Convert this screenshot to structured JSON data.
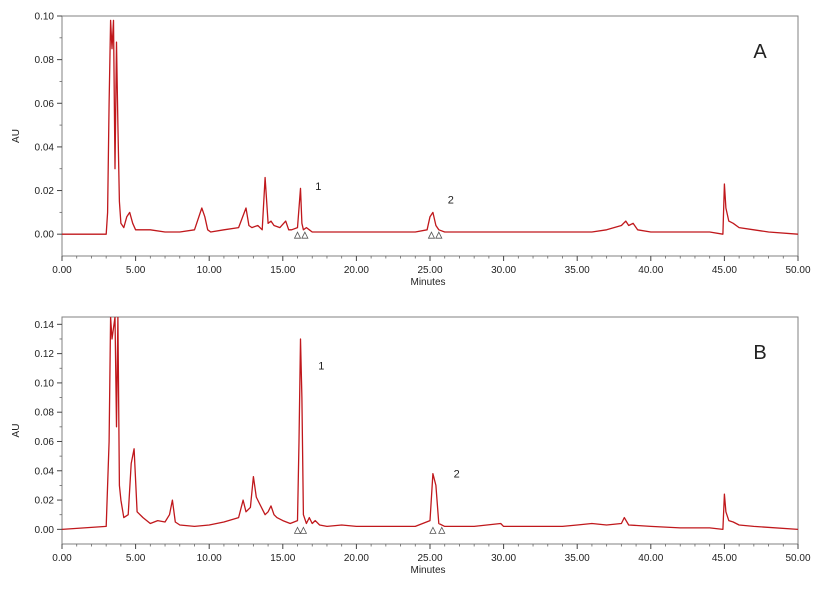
{
  "chart_data": [
    {
      "type": "line",
      "panel_label": "A",
      "xlabel": "Minutes",
      "ylabel": "AU",
      "xlim": [
        0,
        50
      ],
      "ylim": [
        -0.01,
        0.1
      ],
      "x_ticks": [
        "0.00",
        "5.00",
        "10.00",
        "15.00",
        "20.00",
        "25.00",
        "30.00",
        "35.00",
        "40.00",
        "45.00",
        "50.00"
      ],
      "y_ticks": [
        "0.00",
        "0.02",
        "0.04",
        "0.06",
        "0.08",
        "0.10"
      ],
      "peak_labels": [
        {
          "text": "1",
          "x": 16.8,
          "y": 0.022
        },
        {
          "text": "2",
          "x": 25.8,
          "y": 0.016
        }
      ],
      "markers": [
        16.0,
        16.5,
        25.1,
        25.6
      ],
      "trace_color": "#c0181c",
      "series": [
        {
          "x": [
            0,
            3.0,
            3.1,
            3.2,
            3.3,
            3.4,
            3.5,
            3.6,
            3.7,
            3.8,
            3.9,
            4.0,
            4.2,
            4.4,
            4.6,
            4.8,
            5.0,
            5.5,
            6.0,
            7.0,
            8.0,
            9.0,
            9.5,
            9.7,
            9.9,
            10.1,
            11.0,
            12.0,
            12.5,
            12.7,
            12.9,
            13.3,
            13.6,
            13.8,
            14.0,
            14.2,
            14.4,
            14.8,
            15.2,
            15.4,
            15.6,
            16.0,
            16.2,
            16.3,
            16.4,
            16.6,
            16.8,
            17.0,
            18.0,
            20.0,
            22.0,
            24.0,
            24.8,
            25.0,
            25.2,
            25.4,
            25.6,
            26.0,
            28.0,
            30.0,
            32.0,
            34.0,
            36.0,
            37.0,
            38.0,
            38.3,
            38.5,
            38.8,
            39.1,
            40.0,
            42.0,
            44.0,
            44.9,
            45.0,
            45.1,
            45.3,
            45.6,
            46.0,
            47.0,
            48.0,
            50.0
          ],
          "y": [
            0,
            0.0,
            0.01,
            0.06,
            0.098,
            0.085,
            0.098,
            0.03,
            0.088,
            0.05,
            0.015,
            0.005,
            0.003,
            0.008,
            0.01,
            0.005,
            0.002,
            0.002,
            0.002,
            0.001,
            0.001,
            0.002,
            0.012,
            0.008,
            0.002,
            0.001,
            0.002,
            0.003,
            0.012,
            0.004,
            0.003,
            0.004,
            0.002,
            0.026,
            0.005,
            0.006,
            0.004,
            0.003,
            0.006,
            0.002,
            0.002,
            0.003,
            0.021,
            0.005,
            0.002,
            0.003,
            0.002,
            0.001,
            0.001,
            0.001,
            0.001,
            0.001,
            0.002,
            0.008,
            0.01,
            0.004,
            0.002,
            0.001,
            0.001,
            0.001,
            0.001,
            0.001,
            0.001,
            0.002,
            0.004,
            0.006,
            0.004,
            0.005,
            0.002,
            0.001,
            0.001,
            0.001,
            0.0,
            0.023,
            0.012,
            0.006,
            0.005,
            0.003,
            0.002,
            0.001,
            0.0
          ]
        }
      ]
    },
    {
      "type": "line",
      "panel_label": "B",
      "xlabel": "Minutes",
      "ylabel": "AU",
      "xlim": [
        0,
        50
      ],
      "ylim": [
        -0.01,
        0.145
      ],
      "x_ticks": [
        "0.00",
        "5.00",
        "10.00",
        "15.00",
        "20.00",
        "25.00",
        "30.00",
        "35.00",
        "40.00",
        "45.00",
        "50.00"
      ],
      "y_ticks": [
        "0.00",
        "0.02",
        "0.04",
        "0.06",
        "0.08",
        "0.10",
        "0.12",
        "0.14"
      ],
      "peak_labels": [
        {
          "text": "1",
          "x": 17.0,
          "y": 0.112
        },
        {
          "text": "2",
          "x": 26.2,
          "y": 0.038
        }
      ],
      "markers": [
        16.0,
        16.4,
        25.2,
        25.8
      ],
      "trace_color": "#c0181c",
      "series": [
        {
          "x": [
            0,
            3.0,
            3.2,
            3.3,
            3.4,
            3.6,
            3.7,
            3.8,
            3.9,
            4.0,
            4.2,
            4.5,
            4.7,
            4.9,
            5.1,
            5.5,
            6.0,
            6.5,
            7.0,
            7.3,
            7.5,
            7.7,
            8.0,
            9.0,
            10.0,
            11.0,
            12.0,
            12.3,
            12.5,
            12.8,
            13.0,
            13.2,
            13.4,
            13.6,
            13.8,
            14.0,
            14.2,
            14.4,
            14.6,
            15.0,
            15.5,
            16.0,
            16.1,
            16.2,
            16.3,
            16.4,
            16.6,
            16.8,
            17.0,
            17.2,
            17.5,
            18.0,
            19.0,
            20.0,
            22.0,
            24.0,
            25.0,
            25.2,
            25.4,
            25.6,
            26.0,
            28.0,
            29.8,
            30.0,
            32.0,
            34.0,
            35.0,
            36.0,
            37.0,
            38.0,
            38.2,
            38.5,
            40.0,
            42.0,
            44.0,
            44.9,
            45.0,
            45.1,
            45.3,
            45.6,
            46.0,
            47.0,
            50.0
          ],
          "y": [
            0,
            0.002,
            0.06,
            0.145,
            0.13,
            0.145,
            0.07,
            0.145,
            0.03,
            0.02,
            0.008,
            0.01,
            0.045,
            0.055,
            0.012,
            0.008,
            0.004,
            0.006,
            0.005,
            0.01,
            0.02,
            0.005,
            0.003,
            0.002,
            0.003,
            0.005,
            0.008,
            0.02,
            0.012,
            0.015,
            0.036,
            0.022,
            0.018,
            0.014,
            0.01,
            0.012,
            0.016,
            0.01,
            0.008,
            0.006,
            0.004,
            0.006,
            0.06,
            0.13,
            0.09,
            0.01,
            0.004,
            0.008,
            0.004,
            0.006,
            0.003,
            0.002,
            0.003,
            0.002,
            0.002,
            0.002,
            0.006,
            0.038,
            0.03,
            0.004,
            0.002,
            0.002,
            0.004,
            0.002,
            0.002,
            0.002,
            0.003,
            0.004,
            0.003,
            0.004,
            0.008,
            0.003,
            0.002,
            0.001,
            0.001,
            0.0,
            0.024,
            0.012,
            0.006,
            0.005,
            0.003,
            0.002,
            0.0
          ]
        }
      ]
    }
  ]
}
